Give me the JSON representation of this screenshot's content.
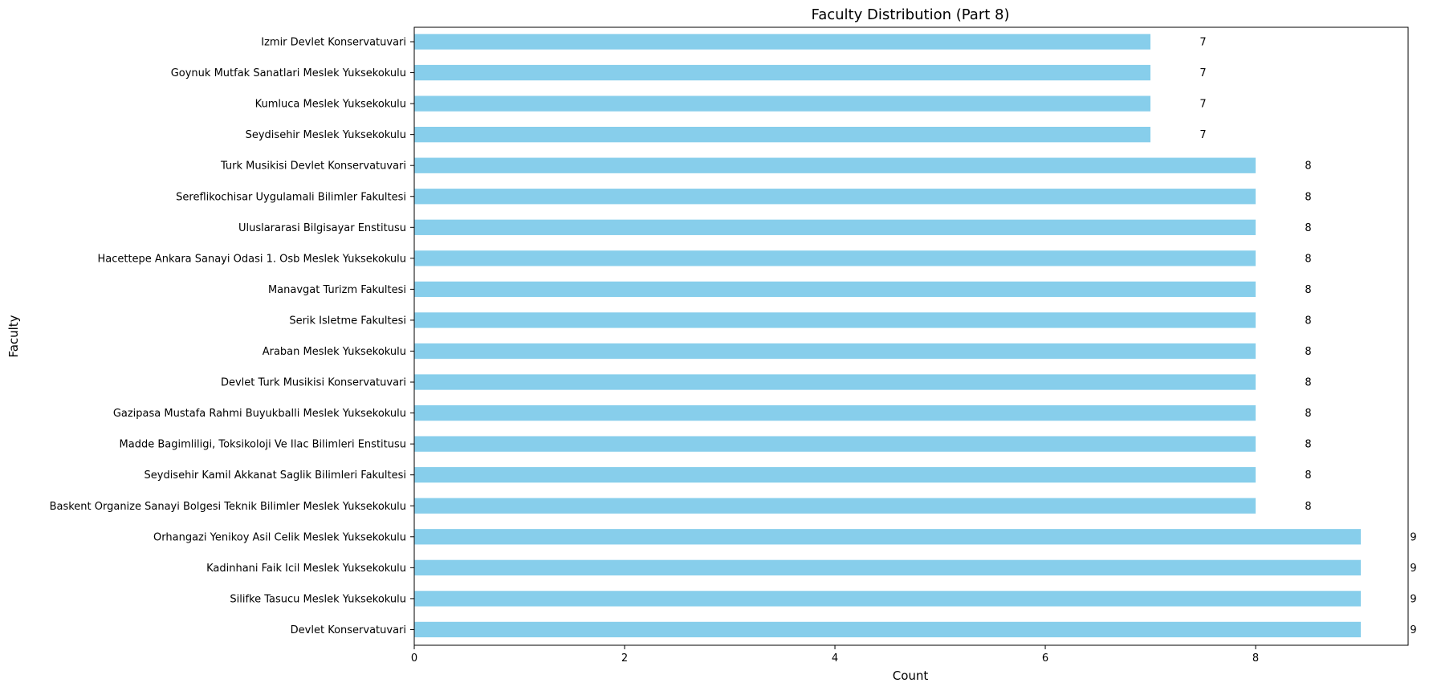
{
  "chart_data": {
    "type": "bar",
    "orientation": "horizontal",
    "title": "Faculty Distribution (Part 8)",
    "xlabel": "Count",
    "ylabel": "Faculty",
    "xlim": [
      0,
      9.45
    ],
    "xticks": [
      0,
      2,
      4,
      6,
      8
    ],
    "grid": false,
    "bar_color": "#87ceeb",
    "categories": [
      "Izmir Devlet Konservatuvari",
      "Goynuk Mutfak Sanatlari Meslek Yuksekokulu",
      "Kumluca Meslek Yuksekokulu",
      "Seydisehir Meslek Yuksekokulu",
      "Turk Musikisi Devlet Konservatuvari",
      "Sereflikochisar Uygulamali Bilimler Fakultesi",
      "Uluslararasi Bilgisayar Enstitusu",
      "Hacettepe Ankara Sanayi Odasi 1. Osb Meslek Yuksekokulu",
      "Manavgat Turizm Fakultesi",
      "Serik Isletme Fakultesi",
      "Araban Meslek Yuksekokulu",
      "Devlet Turk Musikisi Konservatuvari",
      "Gazipasa Mustafa Rahmi Buyukballi Meslek Yuksekokulu",
      "Madde Bagimliligi, Toksikoloji Ve Ilac Bilimleri Enstitusu",
      "Seydisehir Kamil Akkanat Saglik Bilimleri Fakultesi",
      "Baskent Organize Sanayi Bolgesi Teknik Bilimler Meslek Yuksekokulu",
      "Orhangazi Yenikoy Asil Celik Meslek Yuksekokulu",
      "Kadinhani Faik Icil Meslek Yuksekokulu",
      "Silifke Tasucu Meslek Yuksekokulu",
      "Devlet Konservatuvari"
    ],
    "values": [
      7,
      7,
      7,
      7,
      8,
      8,
      8,
      8,
      8,
      8,
      8,
      8,
      8,
      8,
      8,
      8,
      9,
      9,
      9,
      9
    ]
  }
}
